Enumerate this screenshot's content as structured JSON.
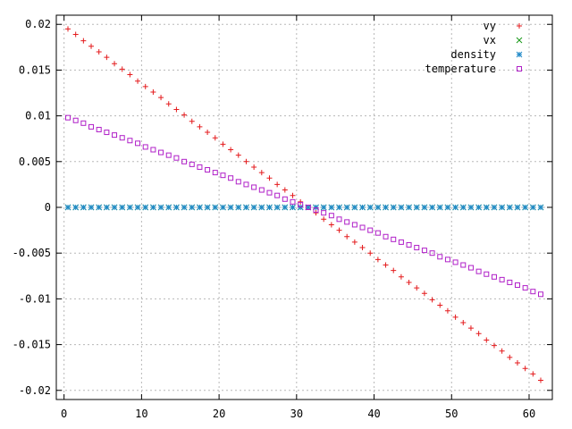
{
  "chart_data": {
    "type": "scatter",
    "title": "",
    "xlabel": "",
    "ylabel": "",
    "xlim": [
      -1,
      63
    ],
    "ylim": [
      -0.021,
      0.021
    ],
    "xticks": [
      0,
      10,
      20,
      30,
      40,
      50,
      60
    ],
    "xtick_labels": [
      "0",
      "10",
      "20",
      "30",
      "40",
      "50",
      "60"
    ],
    "yticks": [
      0.02,
      0.015,
      0.01,
      0.005,
      0,
      -0.005,
      -0.01,
      -0.015,
      -0.02
    ],
    "ytick_labels": [
      "0.02",
      "0.015",
      "0.01",
      "0.005",
      "0",
      "-0.005",
      "-0.01",
      "-0.015",
      "-0.02"
    ],
    "grid": true,
    "legend_position": "top-right",
    "x": [
      0.5,
      1.5,
      2.5,
      3.5,
      4.5,
      5.5,
      6.5,
      7.5,
      8.5,
      9.5,
      10.5,
      11.5,
      12.5,
      13.5,
      14.5,
      15.5,
      16.5,
      17.5,
      18.5,
      19.5,
      20.5,
      21.5,
      22.5,
      23.5,
      24.5,
      25.5,
      26.5,
      27.5,
      28.5,
      29.5,
      30.5,
      31.5,
      32.5,
      33.5,
      34.5,
      35.5,
      36.5,
      37.5,
      38.5,
      39.5,
      40.5,
      41.5,
      42.5,
      43.5,
      44.5,
      45.5,
      46.5,
      47.5,
      48.5,
      49.5,
      50.5,
      51.5,
      52.5,
      53.5,
      54.5,
      55.5,
      56.5,
      57.5,
      58.5,
      59.5,
      60.5,
      61.5
    ],
    "series": [
      {
        "name": "vy",
        "marker": "plus",
        "color": "#e41a1c",
        "values": [
          0.0195,
          0.0189,
          0.0182,
          0.0176,
          0.017,
          0.0164,
          0.0157,
          0.0151,
          0.0145,
          0.0138,
          0.0132,
          0.0126,
          0.012,
          0.0113,
          0.0107,
          0.0101,
          0.0094,
          0.0088,
          0.0082,
          0.0076,
          0.0069,
          0.0063,
          0.0057,
          0.005,
          0.0044,
          0.0038,
          0.0032,
          0.0025,
          0.0019,
          0.0013,
          0.0006,
          0.0,
          -0.0006,
          -0.0013,
          -0.0019,
          -0.0025,
          -0.0032,
          -0.0038,
          -0.0044,
          -0.005,
          -0.0057,
          -0.0063,
          -0.0069,
          -0.0076,
          -0.0082,
          -0.0088,
          -0.0094,
          -0.0101,
          -0.0107,
          -0.0113,
          -0.012,
          -0.0126,
          -0.0132,
          -0.0138,
          -0.0145,
          -0.0151,
          -0.0157,
          -0.0164,
          -0.017,
          -0.0176,
          -0.0182,
          -0.0189
        ]
      },
      {
        "name": "vx",
        "marker": "cross",
        "color": "#1a9a1a",
        "values": [
          0,
          0,
          0,
          0,
          0,
          0,
          0,
          0,
          0,
          0,
          0,
          0,
          0,
          0,
          0,
          0,
          0,
          0,
          0,
          0,
          0,
          0,
          0,
          0,
          0,
          0,
          0,
          0,
          0,
          0,
          0,
          0,
          0,
          0,
          0,
          0,
          0,
          0,
          0,
          0,
          0,
          0,
          0,
          0,
          0,
          0,
          0,
          0,
          0,
          0,
          0,
          0,
          0,
          0,
          0,
          0,
          0,
          0,
          0,
          0,
          0,
          0
        ]
      },
      {
        "name": "density",
        "marker": "star",
        "color": "#1e88c8",
        "values": [
          0,
          0,
          0,
          0,
          0,
          0,
          0,
          0,
          0,
          0,
          0,
          0,
          0,
          0,
          0,
          0,
          0,
          0,
          0,
          0,
          0,
          0,
          0,
          0,
          0,
          0,
          0,
          0,
          0,
          0,
          0,
          0,
          0,
          0,
          0,
          0,
          0,
          0,
          0,
          0,
          0,
          0,
          0,
          0,
          0,
          0,
          0,
          0,
          0,
          0,
          0,
          0,
          0,
          0,
          0,
          0,
          0,
          0,
          0,
          0,
          0,
          0
        ]
      },
      {
        "name": "temperature",
        "marker": "square",
        "color": "#b020c8",
        "values": [
          0.0098,
          0.0095,
          0.0092,
          0.0088,
          0.0085,
          0.0082,
          0.0079,
          0.0076,
          0.0073,
          0.007,
          0.0066,
          0.0063,
          0.006,
          0.0057,
          0.0054,
          0.005,
          0.0047,
          0.0044,
          0.0041,
          0.0038,
          0.0035,
          0.0032,
          0.0028,
          0.0025,
          0.0022,
          0.0019,
          0.0016,
          0.0013,
          0.0009,
          0.0006,
          0.0003,
          0.0,
          -0.0003,
          -0.0006,
          -0.0009,
          -0.0013,
          -0.0016,
          -0.0019,
          -0.0022,
          -0.0025,
          -0.0028,
          -0.0032,
          -0.0035,
          -0.0038,
          -0.0041,
          -0.0044,
          -0.0047,
          -0.005,
          -0.0054,
          -0.0057,
          -0.006,
          -0.0063,
          -0.0066,
          -0.007,
          -0.0073,
          -0.0076,
          -0.0079,
          -0.0082,
          -0.0085,
          -0.0088,
          -0.0092,
          -0.0095
        ]
      }
    ]
  }
}
